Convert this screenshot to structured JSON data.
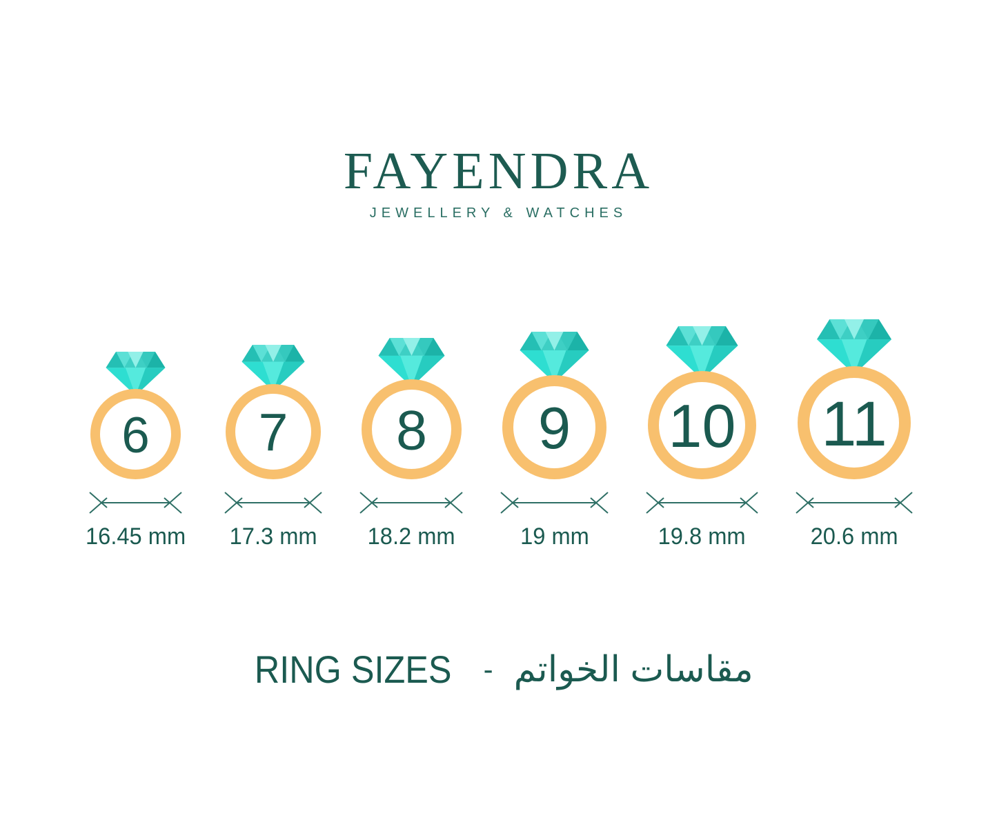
{
  "brand": {
    "name": "FAYENDRA",
    "tagline": "JEWELLERY & WATCHES"
  },
  "chart_title": {
    "title_en": "RING SIZES",
    "separator": "-",
    "title_ar": "مقاسات الخواتم"
  },
  "rings": [
    {
      "size": "6",
      "diameter_label": "16.45 mm",
      "diameter_mm": 16.45
    },
    {
      "size": "7",
      "diameter_label": "17.3 mm",
      "diameter_mm": 17.3
    },
    {
      "size": "8",
      "diameter_label": "18.2 mm",
      "diameter_mm": 18.2
    },
    {
      "size": "9",
      "diameter_label": "19 mm",
      "diameter_mm": 19
    },
    {
      "size": "10",
      "diameter_label": "19.8 mm",
      "diameter_mm": 19.8
    },
    {
      "size": "11",
      "diameter_label": "20.6 mm",
      "diameter_mm": 20.6
    }
  ],
  "chart_data": {
    "type": "table",
    "title": "RING SIZES",
    "columns": [
      "ring_size",
      "inner_diameter"
    ],
    "rows": [
      [
        "6",
        "16.45 mm"
      ],
      [
        "7",
        "17.3 mm"
      ],
      [
        "8",
        "18.2 mm"
      ],
      [
        "9",
        "19 mm"
      ],
      [
        "10",
        "19.8 mm"
      ],
      [
        "11",
        "20.6 mm"
      ]
    ]
  },
  "colors": {
    "brand_teal": "#1D5B51",
    "text_teal": "#1B5A50",
    "band_gold": "#F8C06E",
    "measure_line": "#2E6F65",
    "diamond": {
      "crown_base": "#3ECFC4",
      "crown_mid_left": "#5CE0D6",
      "crown_mid_right": "#35C9BE",
      "crown_center": "#93F0E8",
      "crown_edge_left": "#25BFB4",
      "crown_edge_right": "#1CB3A8",
      "pavilion_base": "#2EDED1",
      "pavilion_right": "#27CCC0",
      "pavilion_center": "#55EADD"
    }
  }
}
